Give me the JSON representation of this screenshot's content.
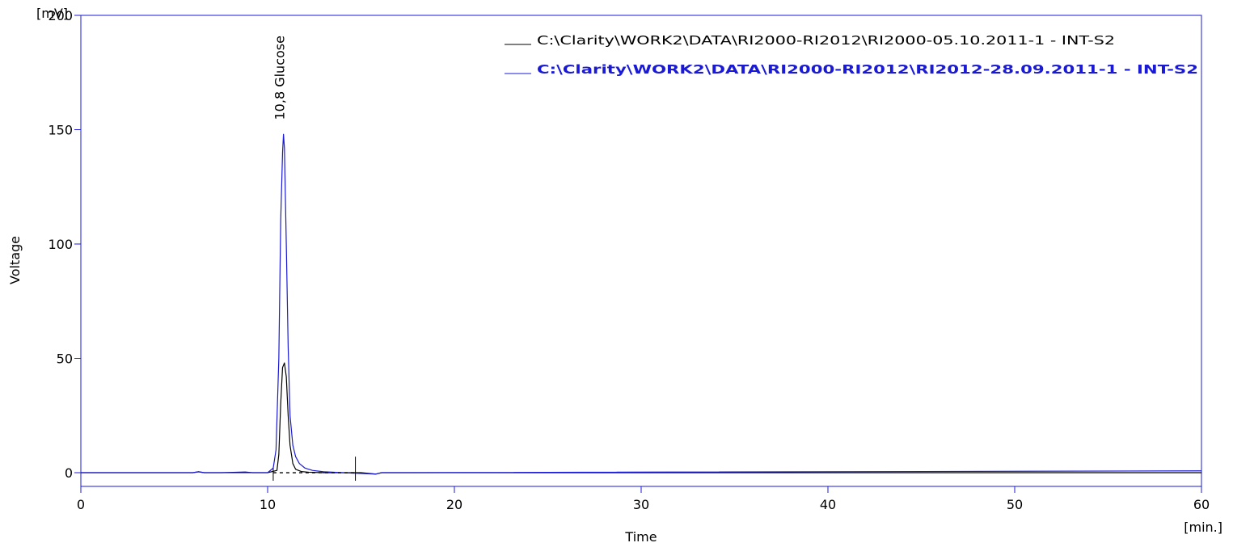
{
  "chart_data": {
    "type": "line",
    "title": "",
    "xlabel": "Time",
    "ylabel": "Voltage",
    "x_unit": "[min.]",
    "y_unit": "[mV]",
    "xlim": [
      0,
      60
    ],
    "ylim": [
      -6,
      200
    ],
    "x_ticks": [
      0,
      10,
      20,
      30,
      40,
      50,
      60
    ],
    "y_ticks": [
      0,
      50,
      100,
      150,
      200
    ],
    "x_tick_labels": [
      "0",
      "10",
      "20",
      "30",
      "40",
      "50",
      "60"
    ],
    "y_tick_labels": [
      "0",
      "50",
      "100",
      "150",
      "200"
    ],
    "grid": false,
    "legend_position": "top-right",
    "series": [
      {
        "name": "C:\\Clarity\\WORK2\\DATA\\RI2000-RI2012\\RI2000-05.10.2011-1 - INT-S2",
        "color": "#000000",
        "x": [
          0,
          6.0,
          6.3,
          6.6,
          7.5,
          8.8,
          9.2,
          10.0,
          10.5,
          10.6,
          10.7,
          10.8,
          10.9,
          11.0,
          11.1,
          11.2,
          11.35,
          11.5,
          11.8,
          12.2,
          13.0,
          15.0,
          15.8,
          16.1,
          17.0,
          60
        ],
        "y": [
          0,
          0,
          0.4,
          0,
          0,
          0.3,
          0,
          0,
          1,
          8,
          30,
          46,
          48,
          42,
          25,
          12,
          4,
          1.5,
          0.5,
          0.2,
          0,
          0,
          -0.6,
          0,
          0,
          0
        ]
      },
      {
        "name": "C:\\Clarity\\WORK2\\DATA\\RI2000-RI2012\\RI2012-28.09.2011-1 - INT-S2",
        "color": "#1a1ad4",
        "x": [
          0,
          6.0,
          6.3,
          6.6,
          10.0,
          10.3,
          10.45,
          10.6,
          10.7,
          10.8,
          10.85,
          10.9,
          11.0,
          11.1,
          11.2,
          11.35,
          11.5,
          11.7,
          12.0,
          12.4,
          13.0,
          14.0,
          15.8,
          16.1,
          17.0,
          60
        ],
        "y": [
          0,
          0,
          0.4,
          0,
          0,
          2,
          10,
          50,
          110,
          140,
          148,
          142,
          100,
          55,
          25,
          12,
          7,
          4,
          2,
          1,
          0.4,
          0,
          -0.6,
          0,
          0,
          0.8
        ]
      }
    ],
    "annotations": [
      {
        "text": "10,8 Glucose",
        "x": 10.8,
        "y": 150
      }
    ],
    "markers": [
      {
        "type": "baseline",
        "x_start": 10.3,
        "x_end": 14.7,
        "y": 0
      },
      {
        "type": "vline",
        "x": 10.3,
        "y_top": 2
      },
      {
        "type": "vline",
        "x": 14.7,
        "y_top": 7
      }
    ],
    "axis_color": "#1a1ad4"
  }
}
